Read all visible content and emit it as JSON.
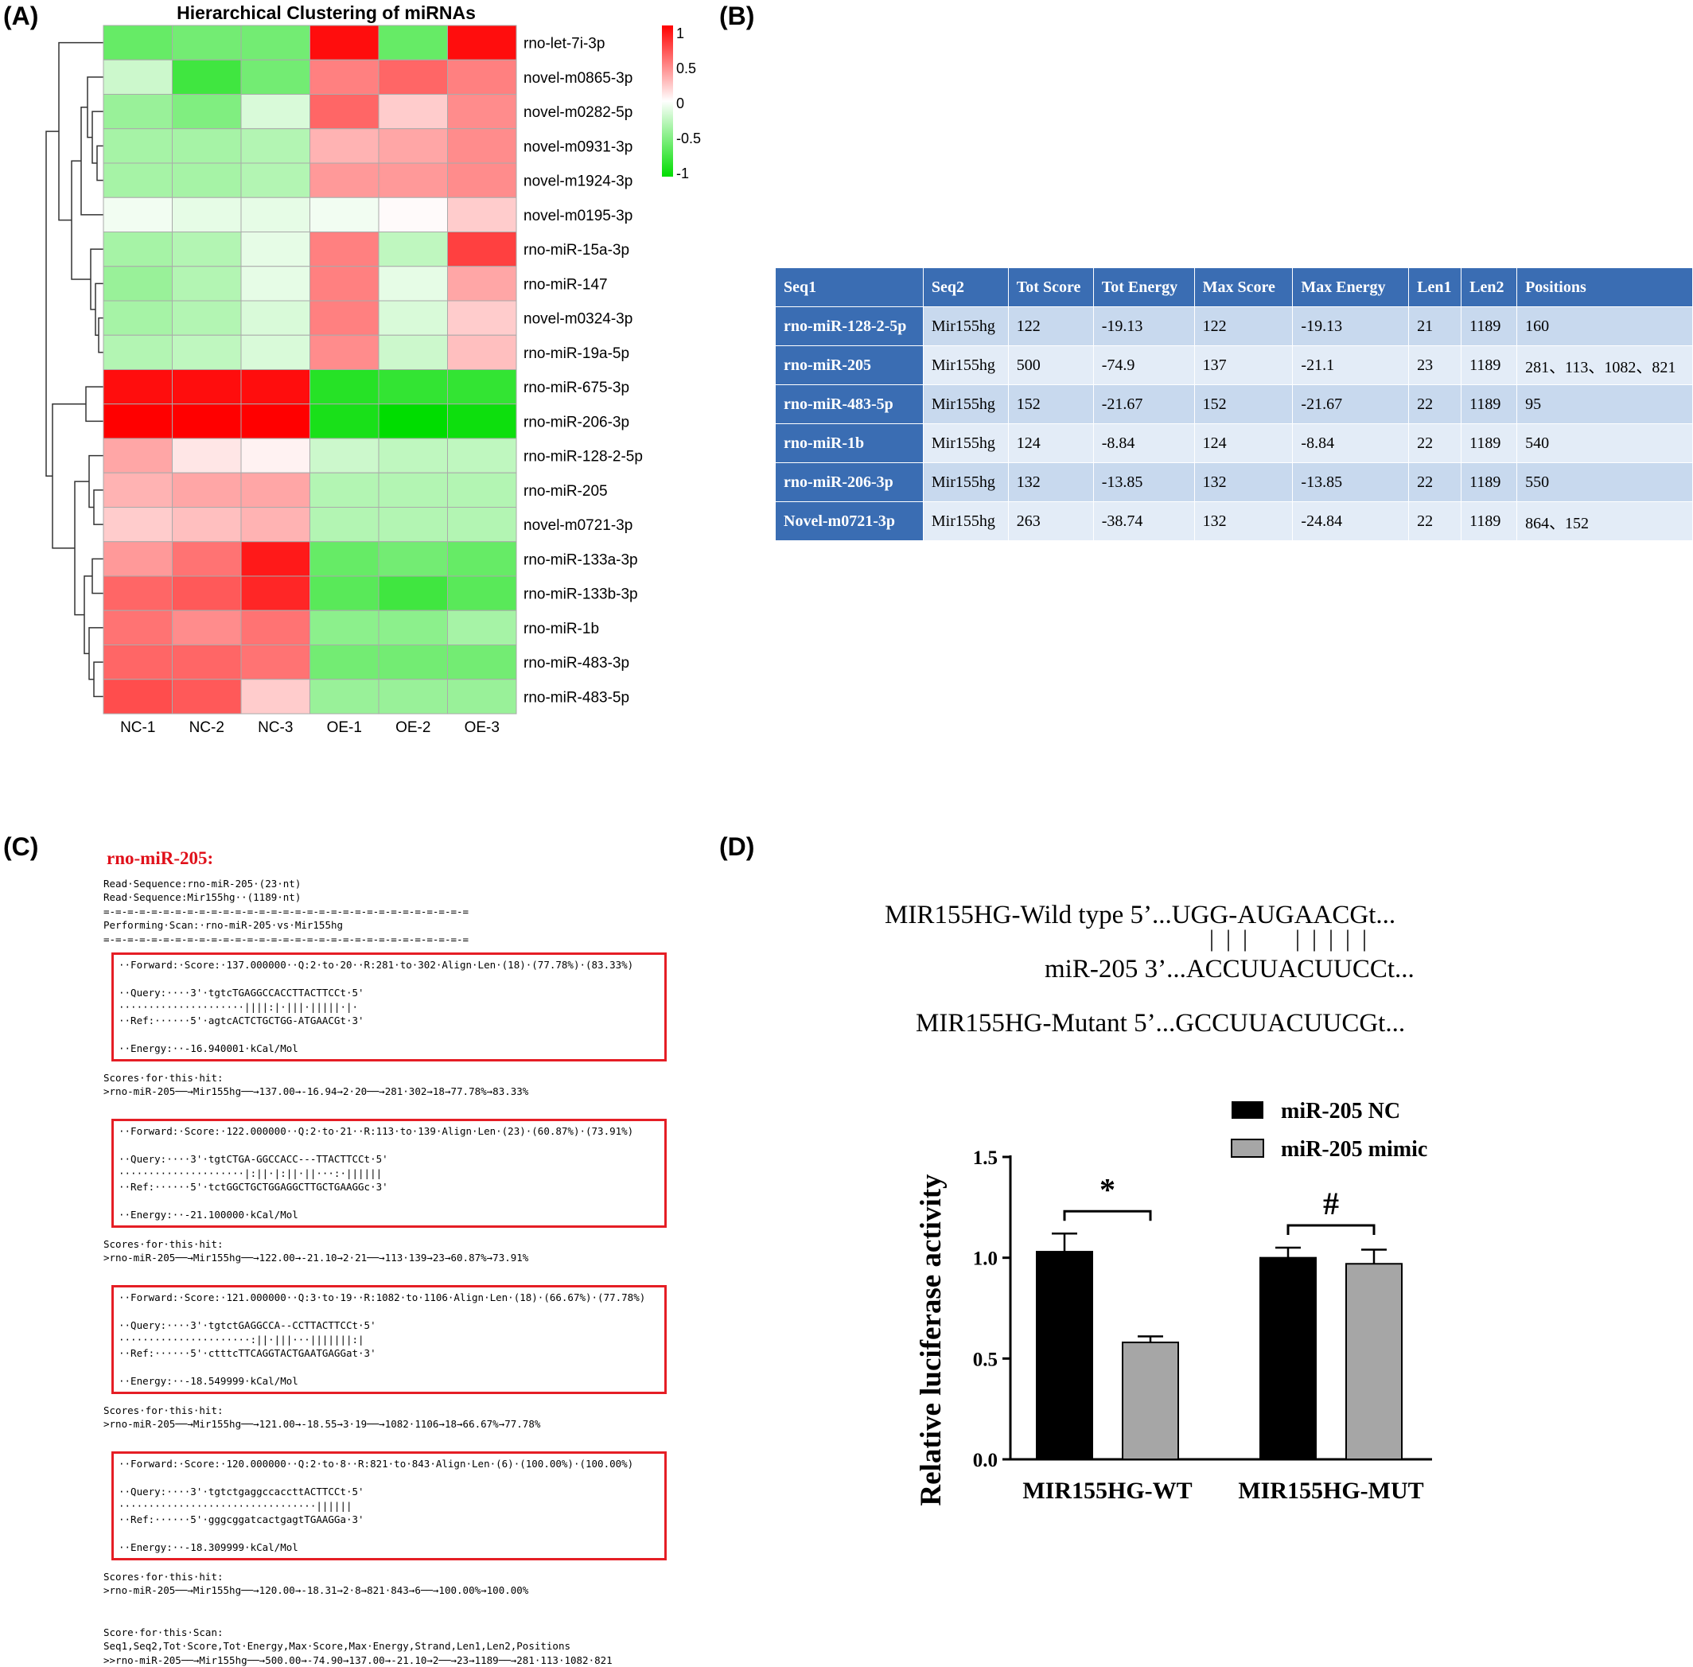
{
  "panels": {
    "a": "(A)",
    "b": "(B)",
    "c": "(C)",
    "d": "(D)"
  },
  "heatmap": {
    "title": "Hierarchical Clustering of miRNAs",
    "columns": [
      "NC-1",
      "NC-2",
      "NC-3",
      "OE-1",
      "OE-2",
      "OE-3"
    ],
    "rows": [
      "rno-let-7i-3p",
      "novel-m0865-3p",
      "novel-m0282-5p",
      "novel-m0931-3p",
      "novel-m1924-3p",
      "novel-m0195-3p",
      "rno-miR-15a-3p",
      "rno-miR-147",
      "novel-m0324-3p",
      "rno-miR-19a-5p",
      "rno-miR-675-3p",
      "rno-miR-206-3p",
      "rno-miR-128-2-5p",
      "rno-miR-205",
      "novel-m0721-3p",
      "rno-miR-133a-3p",
      "rno-miR-133b-3p",
      "rno-miR-1b",
      "rno-miR-483-3p",
      "rno-miR-483-5p"
    ],
    "values": [
      [
        -0.6,
        -0.55,
        -0.55,
        0.95,
        -0.6,
        0.95
      ],
      [
        -0.2,
        -0.75,
        -0.55,
        0.5,
        0.6,
        0.5
      ],
      [
        -0.4,
        -0.5,
        -0.15,
        0.6,
        0.2,
        0.45
      ],
      [
        -0.35,
        -0.35,
        -0.3,
        0.3,
        0.35,
        0.45
      ],
      [
        -0.35,
        -0.35,
        -0.3,
        0.4,
        0.4,
        0.45
      ],
      [
        -0.05,
        -0.1,
        -0.1,
        -0.05,
        0.02,
        0.2
      ],
      [
        -0.35,
        -0.3,
        -0.1,
        0.5,
        -0.25,
        0.75
      ],
      [
        -0.4,
        -0.3,
        -0.1,
        0.5,
        -0.1,
        0.35
      ],
      [
        -0.35,
        -0.3,
        -0.15,
        0.5,
        -0.15,
        0.2
      ],
      [
        -0.3,
        -0.25,
        -0.15,
        0.45,
        -0.2,
        0.25
      ],
      [
        0.95,
        0.95,
        0.95,
        -0.85,
        -0.8,
        -0.8
      ],
      [
        1.0,
        1.0,
        1.0,
        -0.9,
        -1.0,
        -0.95
      ],
      [
        0.35,
        0.1,
        0.05,
        -0.2,
        -0.25,
        -0.25
      ],
      [
        0.3,
        0.35,
        0.35,
        -0.3,
        -0.3,
        -0.3
      ],
      [
        0.2,
        0.25,
        0.3,
        -0.3,
        -0.3,
        -0.3
      ],
      [
        0.4,
        0.55,
        0.9,
        -0.6,
        -0.55,
        -0.6
      ],
      [
        0.6,
        0.65,
        0.85,
        -0.65,
        -0.75,
        -0.65
      ],
      [
        0.55,
        0.45,
        0.55,
        -0.45,
        -0.45,
        -0.35
      ],
      [
        0.6,
        0.6,
        0.55,
        -0.55,
        -0.55,
        -0.55
      ],
      [
        0.7,
        0.65,
        0.2,
        -0.4,
        -0.4,
        -0.4
      ]
    ],
    "legend_ticks": [
      "1",
      "0.5",
      "0",
      "-0.5",
      "-1"
    ],
    "colors": {
      "high": "#ff0000",
      "mid": "#ffffff",
      "low": "#00dd00"
    }
  },
  "table": {
    "headers": [
      "Seq1",
      "Seq2",
      "Tot Score",
      "Tot Energy",
      "Max Score",
      "Max Energy",
      "Len1",
      "Len2",
      "Positions"
    ],
    "rows": [
      [
        "rno-miR-128-2-5p",
        "Mir155hg",
        "122",
        "-19.13",
        "122",
        "-19.13",
        "21",
        "1189",
        "160"
      ],
      [
        "rno-miR-205",
        "Mir155hg",
        "500",
        "-74.9",
        "137",
        "-21.1",
        "23",
        "1189",
        "281、113、1082、821"
      ],
      [
        "rno-miR-483-5p",
        "Mir155hg",
        "152",
        "-21.67",
        "152",
        "-21.67",
        "22",
        "1189",
        "95"
      ],
      [
        "rno-miR-1b",
        "Mir155hg",
        "124",
        "-8.84",
        "124",
        "-8.84",
        "22",
        "1189",
        "540"
      ],
      [
        "rno-miR-206-3p",
        "Mir155hg",
        "132",
        "-13.85",
        "132",
        "-13.85",
        "22",
        "1189",
        "550"
      ],
      [
        "Novel-m0721-3p",
        "Mir155hg",
        "263",
        "-38.74",
        "132",
        "-24.84",
        "22",
        "1189",
        "864、152"
      ]
    ]
  },
  "scan": {
    "title": "rno-miR-205:",
    "header": [
      "Read·Sequence:rno-miR-205·(23·nt)",
      "Read·Sequence:Mir155hg··(1189·nt)",
      "=-=-=-=-=-=-=-=-=-=-=-=-=-=-=-=-=-=-=-=-=-=-=-=-=-=-=-=-=-=-=",
      "Performing·Scan:·rno-miR-205·vs·Mir155hg",
      "=-=-=-=-=-=-=-=-=-=-=-=-=-=-=-=-=-=-=-=-=-=-=-=-=-=-=-=-=-=-="
    ],
    "hits": [
      {
        "forward": "··Forward:·Score:·137.000000··Q:2·to·20··R:281·to·302·Align·Len·(18)·(77.78%)·(83.33%)",
        "query": "··Query:····3'·tgtcTGAGGCCACCTTACTTCCt·5'",
        "match": "·····················||||:|·|||·|||||·|·",
        "ref": "··Ref:······5'·agtcACTCTGCTGG-ATGAACGt·3'",
        "energy": "··Energy:··-16.940001·kCal/Mol",
        "scores_label": "Scores·for·this·hit:",
        "scores": ">rno-miR-205──→Mir155hg──→137.00→-16.94→2·20──→281·302→18→77.78%→83.33%"
      },
      {
        "forward": "··Forward:·Score:·122.000000··Q:2·to·21··R:113·to·139·Align·Len·(23)·(60.87%)·(73.91%)",
        "query": "··Query:····3'·tgtCTGA-GGCCACC---TTACTTCCt·5'",
        "match": "·····················|:||·|:||·||···:·||||||",
        "ref": "··Ref:······5'·tctGGCTGCTGGAGGCTTGCTGAAGGc·3'",
        "energy": "··Energy:··-21.100000·kCal/Mol",
        "scores_label": "Scores·for·this·hit:",
        "scores": ">rno-miR-205──→Mir155hg──→122.00→-21.10→2·21──→113·139→23→60.87%→73.91%"
      },
      {
        "forward": "··Forward:·Score:·121.000000··Q:3·to·19··R:1082·to·1106·Align·Len·(18)·(66.67%)·(77.78%)",
        "query": "··Query:····3'·tgtctGAGGCCA--CCTTACTTCCt·5'",
        "match": "······················:||·|||···|||||||:|",
        "ref": "··Ref:······5'·ctttcTTCAGGTACTGAATGAGGat·3'",
        "energy": "··Energy:··-18.549999·kCal/Mol",
        "scores_label": "Scores·for·this·hit:",
        "scores": ">rno-miR-205──→Mir155hg──→121.00→-18.55→3·19──→1082·1106→18→66.67%→77.78%"
      },
      {
        "forward": "··Forward:·Score:·120.000000··Q:2·to·8··R:821·to·843·Align·Len·(6)·(100.00%)·(100.00%)",
        "query": "··Query:····3'·tgtctgaggccaccttACTTCCt·5'",
        "match": "·································||||||",
        "ref": "··Ref:······5'·gggcggatcactgagtTGAAGGa·3'",
        "energy": "··Energy:··-18.309999·kCal/Mol",
        "scores_label": "Scores·for·this·hit:",
        "scores": ">rno-miR-205──→Mir155hg──→120.00→-18.31→2·8→821·843→6──→100.00%→100.00%"
      }
    ],
    "footer": [
      "Score·for·this·Scan:",
      "Seq1,Seq2,Tot·Score,Tot·Energy,Max·Score,Max·Energy,Strand,Len1,Len2,Positions",
      ">>rno-miR-205──→Mir155hg──→500.00→-74.90→137.00→-21.10→2──→23→1189──→281·113·1082·821"
    ]
  },
  "seq_align": {
    "wild": "MIR155HG-Wild type 5’...UGG-AUGAACGt...",
    "pairs": "|  |  |        |  |  |  |  |",
    "mir": "miR-205 3’...ACCUUACUUCCt...",
    "mutant": "MIR155HG-Mutant 5’...GCCUUACUUCGt..."
  },
  "chart_data": {
    "type": "bar",
    "categories": [
      "MIR155HG-WT",
      "MIR155HG-MUT"
    ],
    "series": [
      {
        "name": "miR-205 NC",
        "values": [
          1.03,
          1.0
        ],
        "errors": [
          0.09,
          0.05
        ],
        "color": "#000000"
      },
      {
        "name": "miR-205 mimic",
        "values": [
          0.58,
          0.97
        ],
        "errors": [
          0.03,
          0.07
        ],
        "color": "#a6a6a6"
      }
    ],
    "ylabel": "Relative luciferase activity",
    "ylim": [
      0,
      1.5
    ],
    "yticks": [
      "0.0",
      "0.5",
      "1.0",
      "1.5"
    ],
    "annotations": [
      "*",
      "#"
    ],
    "legend": "top-right"
  }
}
